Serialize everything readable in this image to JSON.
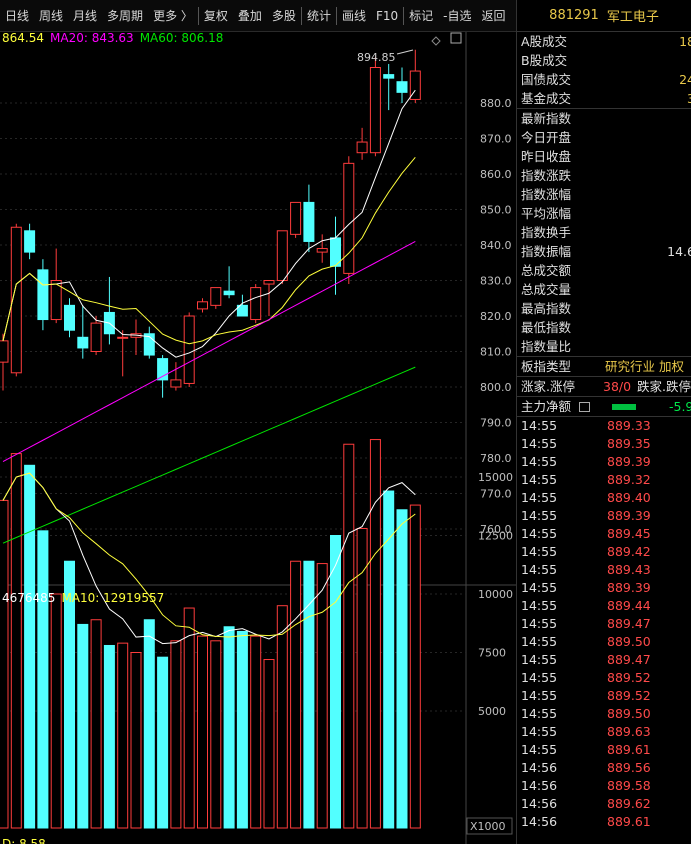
{
  "toolbar": {
    "items": [
      "日线",
      "周线",
      "月线",
      "多周期",
      "更多 〉",
      "复权",
      "叠加",
      "多股",
      "统计",
      "画线",
      "F10",
      "标记",
      "-自选",
      "返回"
    ]
  },
  "legend": {
    "ma_main": "864.54",
    "ma20_label": "MA20: 843.63",
    "ma60_label": "MA60: 806.18"
  },
  "volume_legend": {
    "vol_main": "4676485",
    "ma10_label": "MA10: 12919557",
    "bottom_partial": "D: 8.58",
    "unit": "X1000"
  },
  "colors": {
    "up": "#ff3c3c",
    "down": "#52ffff",
    "ma5": "#ffffff",
    "ma10": "#ffff3c",
    "ma20": "#ff00ff",
    "ma60": "#00e600",
    "accent": "#e8c84a"
  },
  "chart_data": {
    "type": "candlestick",
    "price_axis": {
      "ticks": [
        880,
        870,
        860,
        850,
        840,
        830,
        820,
        810,
        800,
        790,
        780,
        770,
        760
      ]
    },
    "volume_axis": {
      "ticks": [
        15000,
        12500,
        10000,
        7500,
        5000
      ]
    },
    "high_annotation": "894.85",
    "candles": [
      {
        "o": 807,
        "h": 815,
        "l": 799,
        "c": 813,
        "v": 14000
      },
      {
        "o": 804,
        "h": 846,
        "l": 803,
        "c": 845,
        "v": 16000
      },
      {
        "o": 844,
        "h": 846,
        "l": 836,
        "c": 838,
        "v": 15500
      },
      {
        "o": 833,
        "h": 836,
        "l": 816,
        "c": 819,
        "v": 12700
      },
      {
        "o": 819,
        "h": 839,
        "l": 818,
        "c": 830,
        "v": 10000
      },
      {
        "o": 823,
        "h": 825,
        "l": 814,
        "c": 816,
        "v": 11400
      },
      {
        "o": 814,
        "h": 823,
        "l": 808,
        "c": 811,
        "v": 8700
      },
      {
        "o": 810,
        "h": 820,
        "l": 809,
        "c": 818,
        "v": 8900
      },
      {
        "o": 821,
        "h": 831,
        "l": 812,
        "c": 815,
        "v": 7800
      },
      {
        "o": 814,
        "h": 816,
        "l": 803,
        "c": 814,
        "v": 7900
      },
      {
        "o": 814,
        "h": 819,
        "l": 809,
        "c": 815,
        "v": 7500
      },
      {
        "o": 815,
        "h": 817,
        "l": 808,
        "c": 809,
        "v": 8900
      },
      {
        "o": 808,
        "h": 809,
        "l": 797,
        "c": 802,
        "v": 7300
      },
      {
        "o": 800,
        "h": 807,
        "l": 799,
        "c": 802,
        "v": 8000
      },
      {
        "o": 801,
        "h": 821,
        "l": 800,
        "c": 820,
        "v": 9400
      },
      {
        "o": 822,
        "h": 825,
        "l": 821,
        "c": 824,
        "v": 8200
      },
      {
        "o": 823,
        "h": 828,
        "l": 822,
        "c": 828,
        "v": 8000
      },
      {
        "o": 827,
        "h": 834,
        "l": 825,
        "c": 826,
        "v": 8600
      },
      {
        "o": 823,
        "h": 826,
        "l": 820,
        "c": 820,
        "v": 8400
      },
      {
        "o": 819,
        "h": 829,
        "l": 818,
        "c": 828,
        "v": 8200
      },
      {
        "o": 829,
        "h": 830,
        "l": 820,
        "c": 830,
        "v": 7200
      },
      {
        "o": 830,
        "h": 844,
        "l": 829,
        "c": 844,
        "v": 9500
      },
      {
        "o": 843,
        "h": 852,
        "l": 842,
        "c": 852,
        "v": 11400
      },
      {
        "o": 852,
        "h": 857,
        "l": 838,
        "c": 841,
        "v": 11400
      },
      {
        "o": 838,
        "h": 843,
        "l": 835,
        "c": 839,
        "v": 11300
      },
      {
        "o": 842,
        "h": 848,
        "l": 826,
        "c": 834,
        "v": 12500
      },
      {
        "o": 832,
        "h": 865,
        "l": 829,
        "c": 863,
        "v": 16400
      },
      {
        "o": 866,
        "h": 873,
        "l": 864,
        "c": 869,
        "v": 12800
      },
      {
        "o": 866,
        "h": 893,
        "l": 865,
        "c": 890,
        "v": 16600
      },
      {
        "o": 888,
        "h": 891,
        "l": 878,
        "c": 887,
        "v": 14400
      },
      {
        "o": 886,
        "h": 890,
        "l": 880,
        "c": 883,
        "v": 13600
      },
      {
        "o": 881,
        "h": 895,
        "l": 880,
        "c": 889,
        "v": 13800
      }
    ]
  },
  "panel": {
    "title_code": "881291",
    "title_name": "军工电子",
    "group1": [
      {
        "label": "A股成交",
        "value": "18"
      },
      {
        "label": "B股成交",
        "value": ""
      },
      {
        "label": "国债成交",
        "value": "24"
      },
      {
        "label": "基金成交",
        "value": "3"
      }
    ],
    "group2": [
      {
        "label": "最新指数",
        "value": ""
      },
      {
        "label": "今日开盘",
        "value": ""
      },
      {
        "label": "昨日收盘",
        "value": ""
      },
      {
        "label": "指数涨跌",
        "value": ""
      },
      {
        "label": "指数涨幅",
        "value": ""
      },
      {
        "label": "平均涨幅",
        "value": ""
      },
      {
        "label": "指数换手",
        "value": ""
      },
      {
        "label": "指数振幅",
        "value": "14.6"
      },
      {
        "label": "总成交额",
        "value": ""
      },
      {
        "label": "总成交量",
        "value": ""
      },
      {
        "label": "最高指数",
        "value": ""
      },
      {
        "label": "最低指数",
        "value": ""
      },
      {
        "label": "指数量比",
        "value": ""
      }
    ],
    "sector_label": "板指类型",
    "sector_value": "研究行业 加权",
    "updown_label": "涨家.涨停",
    "updown_value": "38/0",
    "down_label": "跌家.跌停",
    "mainflow_label": "主力净额",
    "mainflow_value": "-5.9",
    "ticks": [
      {
        "t": "14:55",
        "p": "889.33"
      },
      {
        "t": "14:55",
        "p": "889.35"
      },
      {
        "t": "14:55",
        "p": "889.39"
      },
      {
        "t": "14:55",
        "p": "889.32"
      },
      {
        "t": "14:55",
        "p": "889.40"
      },
      {
        "t": "14:55",
        "p": "889.39"
      },
      {
        "t": "14:55",
        "p": "889.45"
      },
      {
        "t": "14:55",
        "p": "889.42"
      },
      {
        "t": "14:55",
        "p": "889.43"
      },
      {
        "t": "14:55",
        "p": "889.39"
      },
      {
        "t": "14:55",
        "p": "889.44"
      },
      {
        "t": "14:55",
        "p": "889.47"
      },
      {
        "t": "14:55",
        "p": "889.50"
      },
      {
        "t": "14:55",
        "p": "889.47"
      },
      {
        "t": "14:55",
        "p": "889.52"
      },
      {
        "t": "14:55",
        "p": "889.52"
      },
      {
        "t": "14:55",
        "p": "889.50"
      },
      {
        "t": "14:55",
        "p": "889.63"
      },
      {
        "t": "14:55",
        "p": "889.61"
      },
      {
        "t": "14:56",
        "p": "889.56"
      },
      {
        "t": "14:56",
        "p": "889.58"
      },
      {
        "t": "14:56",
        "p": "889.62"
      },
      {
        "t": "14:56",
        "p": "889.61"
      }
    ]
  }
}
